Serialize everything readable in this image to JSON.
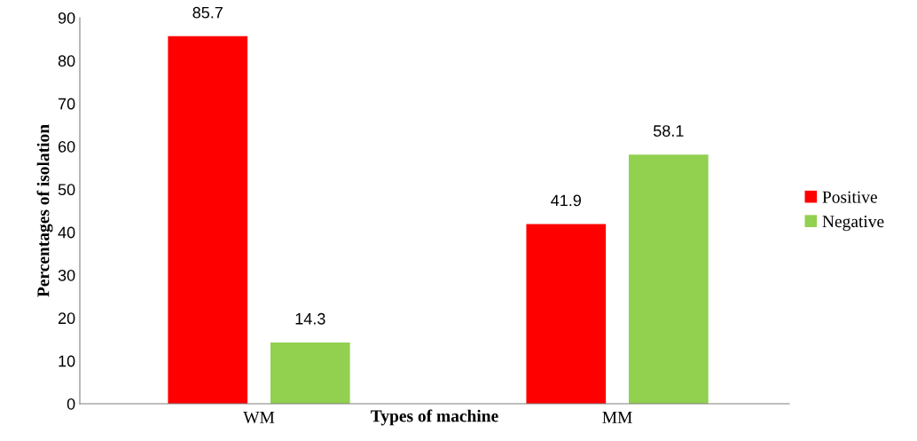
{
  "chart_data": {
    "type": "bar",
    "xlabel": "Types of machine",
    "ylabel": "Percentages of isolation",
    "categories": [
      "WM",
      "MM"
    ],
    "series": [
      {
        "name": "Positive",
        "color": "#ff0000",
        "values": [
          85.7,
          41.9
        ]
      },
      {
        "name": "Negative",
        "color": "#92d050",
        "values": [
          14.3,
          58.1
        ]
      }
    ],
    "ylim": [
      0,
      90
    ],
    "yticks": [
      0,
      10,
      20,
      30,
      40,
      50,
      60,
      70,
      80,
      90
    ],
    "grid": false,
    "legend": "right",
    "data_labels": true
  }
}
